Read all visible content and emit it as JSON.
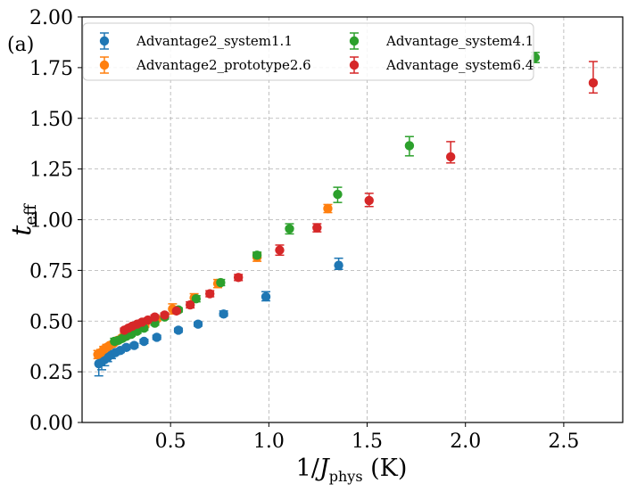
{
  "chart_data": {
    "type": "scatter",
    "panel_label": "(a)",
    "xlabel": {
      "prefix": "1/",
      "main": "J",
      "sub": "phys",
      "suffix": " (K)"
    },
    "ylabel": {
      "main": "t",
      "sub": "eff"
    },
    "xlim": [
      0.05,
      2.8
    ],
    "ylim": [
      0.0,
      2.0
    ],
    "xticks": [
      0.5,
      1.0,
      1.5,
      2.0,
      2.5
    ],
    "xtick_labels": [
      "0.5",
      "1.0",
      "1.5",
      "2.0",
      "2.5"
    ],
    "yticks": [
      0.0,
      0.25,
      0.5,
      0.75,
      1.0,
      1.25,
      1.5,
      1.75,
      2.0
    ],
    "ytick_labels": [
      "0.00",
      "0.25",
      "0.50",
      "0.75",
      "1.00",
      "1.25",
      "1.50",
      "1.75",
      "2.00"
    ],
    "grid": true,
    "legend_position": "top-left",
    "series": [
      {
        "name": "Advantage2_system1.1",
        "color": "#1f77b4",
        "x": [
          0.135,
          0.15,
          0.165,
          0.18,
          0.2,
          0.22,
          0.245,
          0.275,
          0.315,
          0.365,
          0.43,
          0.54,
          0.64,
          0.77,
          0.985,
          1.355
        ],
        "y": [
          0.29,
          0.3,
          0.31,
          0.32,
          0.335,
          0.345,
          0.355,
          0.37,
          0.38,
          0.4,
          0.42,
          0.455,
          0.485,
          0.535,
          0.62,
          0.775
        ],
        "err_low": [
          0.06,
          0.04,
          0.03,
          0.02,
          0.02,
          0.01,
          0.01,
          0.01,
          0.01,
          0.01,
          0.01,
          0.01,
          0.01,
          0.01,
          0.02,
          0.02
        ],
        "err_high": [
          0.03,
          0.02,
          0.02,
          0.02,
          0.02,
          0.01,
          0.01,
          0.01,
          0.01,
          0.01,
          0.01,
          0.01,
          0.01,
          0.015,
          0.025,
          0.035
        ]
      },
      {
        "name": "Advantage2_prototype2.6",
        "color": "#ff7f0e",
        "x": [
          0.13,
          0.145,
          0.16,
          0.175,
          0.19,
          0.21,
          0.23,
          0.255,
          0.285,
          0.32,
          0.37,
          0.43,
          0.51,
          0.62,
          0.74,
          0.94,
          1.3
        ],
        "y": [
          0.335,
          0.345,
          0.36,
          0.37,
          0.38,
          0.39,
          0.405,
          0.42,
          0.44,
          0.455,
          0.48,
          0.51,
          0.56,
          0.615,
          0.685,
          0.815,
          1.055
        ],
        "err_low": [
          0.02,
          0.015,
          0.015,
          0.015,
          0.01,
          0.01,
          0.01,
          0.01,
          0.01,
          0.01,
          0.01,
          0.01,
          0.025,
          0.02,
          0.02,
          0.02,
          0.02
        ],
        "err_high": [
          0.02,
          0.015,
          0.015,
          0.015,
          0.01,
          0.01,
          0.01,
          0.01,
          0.01,
          0.01,
          0.01,
          0.01,
          0.025,
          0.02,
          0.02,
          0.02,
          0.02
        ]
      },
      {
        "name": "Advantage_system4.1",
        "color": "#2ca02c",
        "x": [
          0.215,
          0.235,
          0.255,
          0.275,
          0.3,
          0.33,
          0.365,
          0.42,
          0.47,
          0.54,
          0.63,
          0.755,
          0.94,
          1.105,
          1.35,
          1.715,
          2.355
        ],
        "y": [
          0.4,
          0.405,
          0.415,
          0.425,
          0.435,
          0.45,
          0.465,
          0.49,
          0.52,
          0.555,
          0.61,
          0.69,
          0.825,
          0.955,
          1.125,
          1.365,
          1.8
        ],
        "err_low": [
          0.015,
          0.01,
          0.01,
          0.01,
          0.01,
          0.01,
          0.01,
          0.01,
          0.01,
          0.01,
          0.015,
          0.015,
          0.015,
          0.025,
          0.04,
          0.05,
          0.025
        ],
        "err_high": [
          0.015,
          0.01,
          0.01,
          0.01,
          0.01,
          0.01,
          0.01,
          0.01,
          0.01,
          0.01,
          0.015,
          0.015,
          0.015,
          0.025,
          0.035,
          0.045,
          0.025
        ]
      },
      {
        "name": "Advantage_system6.4",
        "color": "#d62728",
        "x": [
          0.265,
          0.285,
          0.305,
          0.33,
          0.355,
          0.385,
          0.42,
          0.47,
          0.53,
          0.6,
          0.7,
          0.845,
          1.055,
          1.245,
          1.51,
          1.925,
          2.65
        ],
        "y": [
          0.455,
          0.465,
          0.475,
          0.485,
          0.495,
          0.505,
          0.52,
          0.53,
          0.55,
          0.58,
          0.635,
          0.715,
          0.85,
          0.96,
          1.095,
          1.31,
          1.675
        ],
        "err_low": [
          0.01,
          0.01,
          0.01,
          0.01,
          0.01,
          0.01,
          0.01,
          0.01,
          0.01,
          0.015,
          0.015,
          0.015,
          0.025,
          0.02,
          0.03,
          0.03,
          0.05
        ],
        "err_high": [
          0.01,
          0.01,
          0.01,
          0.01,
          0.01,
          0.01,
          0.01,
          0.01,
          0.01,
          0.015,
          0.015,
          0.015,
          0.025,
          0.02,
          0.035,
          0.075,
          0.105
        ]
      }
    ]
  }
}
